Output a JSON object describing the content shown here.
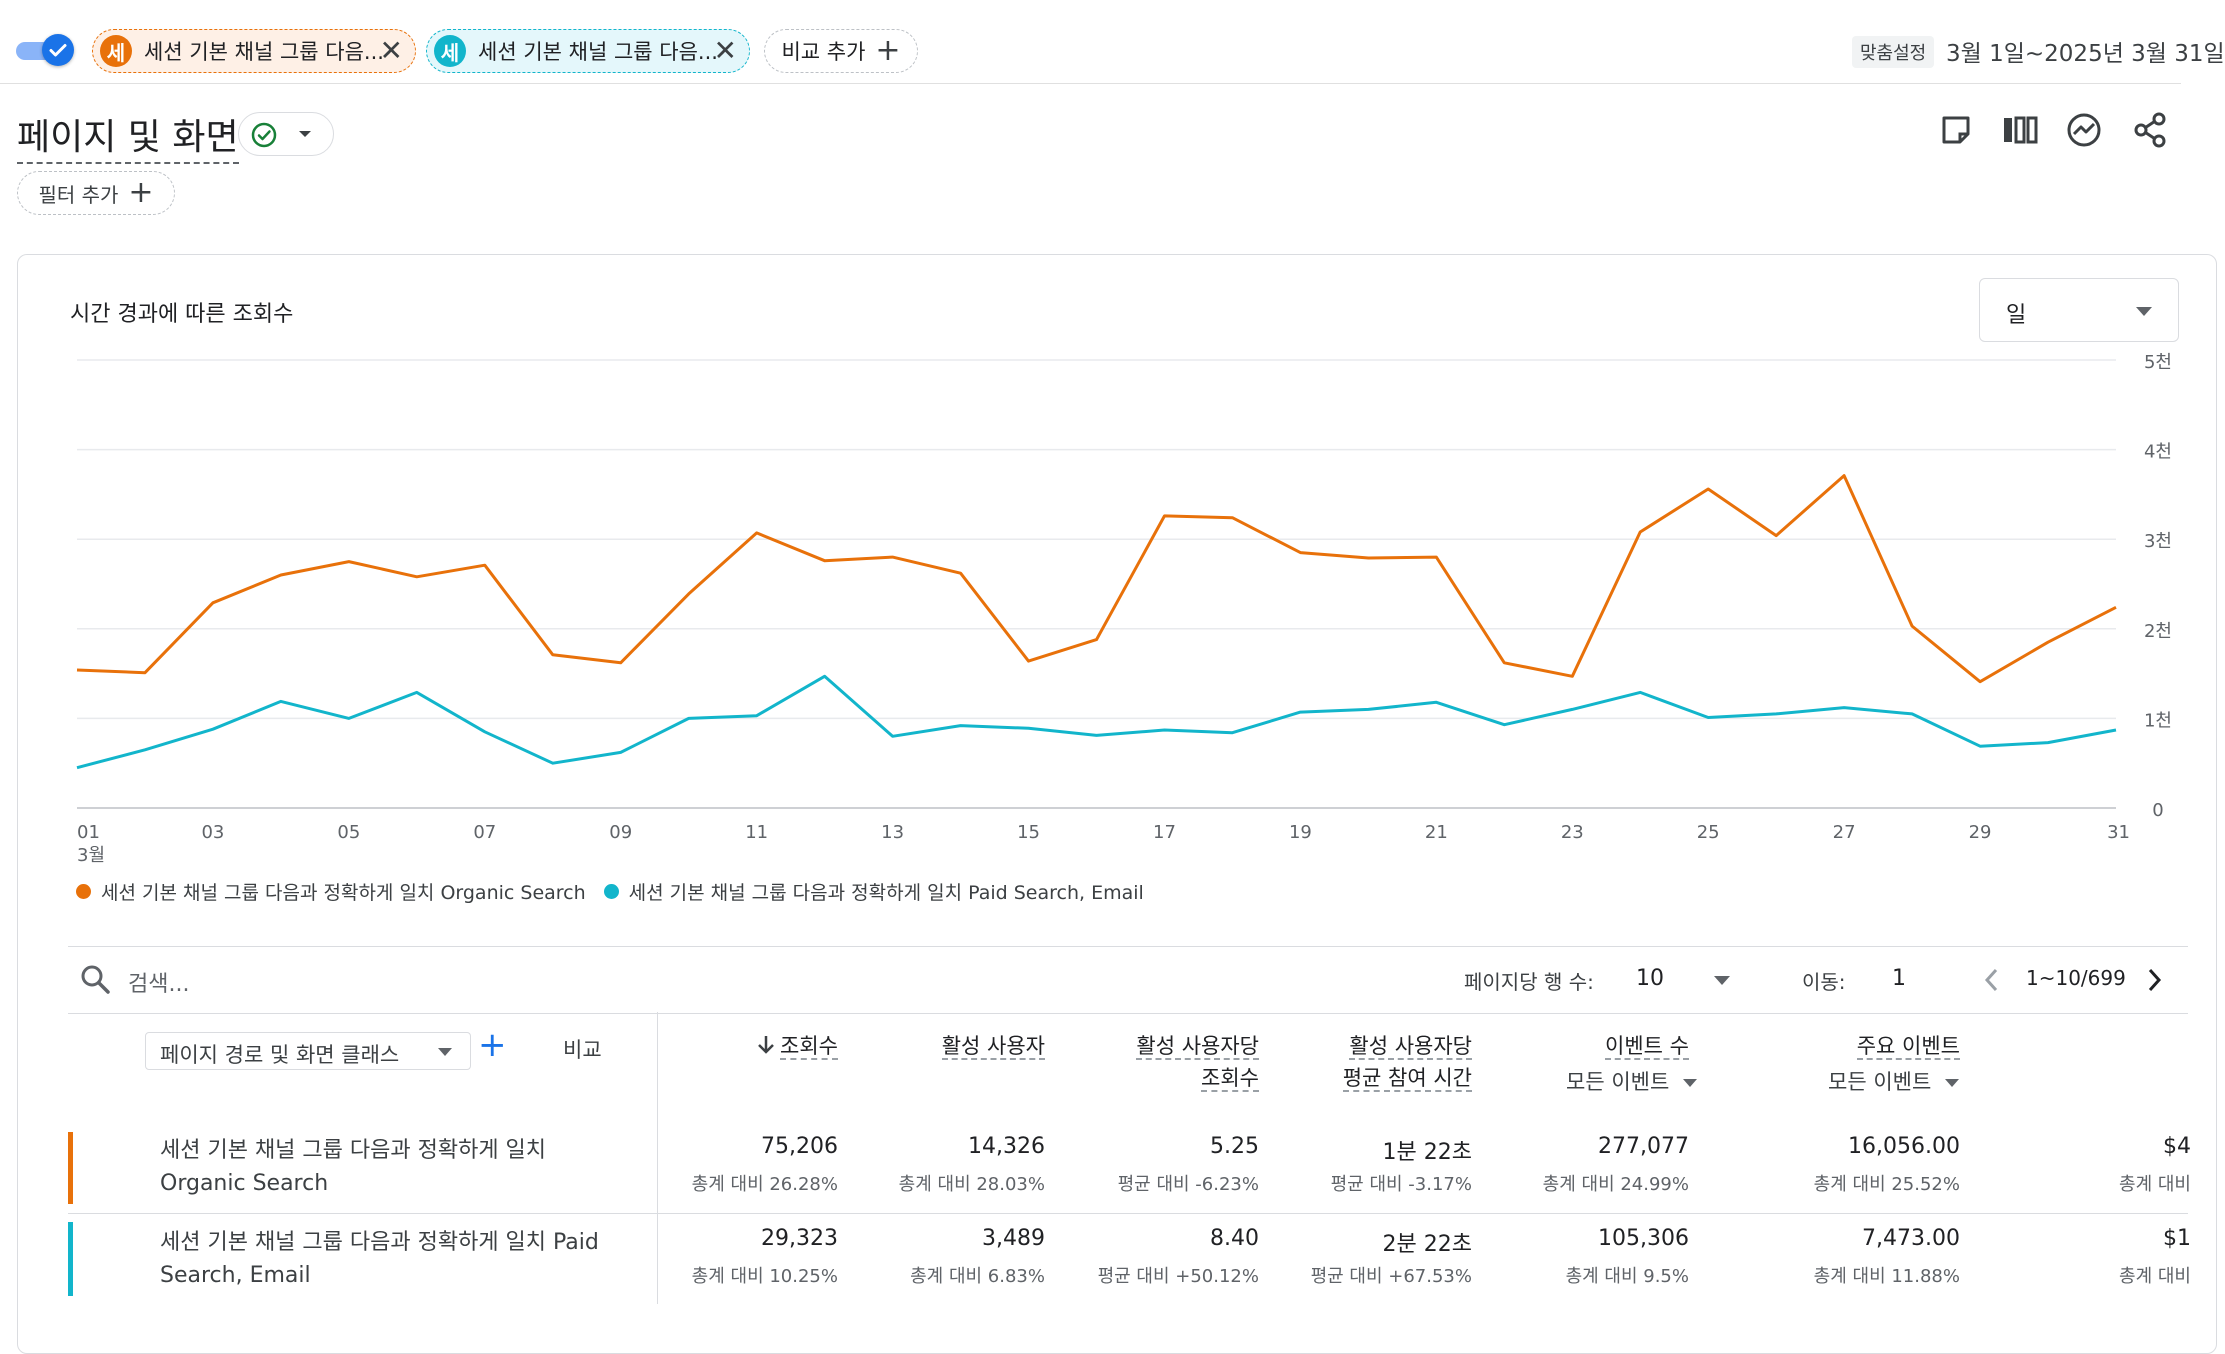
{
  "top_bar": {
    "segments": [
      {
        "badge": "세",
        "label": "세션 기본 채널 그룹 다음...",
        "color": "#e8710a"
      },
      {
        "badge": "세",
        "label": "세션 기본 채널 그룹 다음...",
        "color": "#12b5cb"
      }
    ],
    "add_compare_label": "비교 추가",
    "custom_label": "맞춤설정",
    "date_range": "3월 1일~2025년 3월 31일"
  },
  "header": {
    "title": "페이지 및 화면",
    "add_filter_label": "필터 추가"
  },
  "chart_card": {
    "title": "시간 경과에 따른 조회수",
    "period_value": "일"
  },
  "chart_data": {
    "type": "line",
    "x": [
      1,
      2,
      3,
      4,
      5,
      6,
      7,
      8,
      9,
      10,
      11,
      12,
      13,
      14,
      15,
      16,
      17,
      18,
      19,
      20,
      21,
      22,
      23,
      24,
      25,
      26,
      27,
      28,
      29,
      30,
      31
    ],
    "x_tick_labels": [
      "01",
      "03",
      "05",
      "07",
      "09",
      "11",
      "13",
      "15",
      "17",
      "19",
      "21",
      "23",
      "25",
      "27",
      "29",
      "31"
    ],
    "x_tick_values": [
      1,
      3,
      5,
      7,
      9,
      11,
      13,
      15,
      17,
      19,
      21,
      23,
      25,
      27,
      29,
      31
    ],
    "x_sublabel": "3월",
    "y_tick_labels": [
      "0",
      "1천",
      "2천",
      "3천",
      "4천",
      "5천"
    ],
    "y_tick_values": [
      0,
      1000,
      2000,
      3000,
      4000,
      5000
    ],
    "ylim": [
      0,
      5000
    ],
    "grid": true,
    "legend_position": "bottom-left",
    "series": [
      {
        "name": "세션 기본 채널 그룹 다음과 정확하게 일치 Organic Search",
        "color": "#e8710a",
        "values": [
          1540,
          1510,
          2290,
          2600,
          2750,
          2580,
          2710,
          1710,
          1620,
          2390,
          3070,
          2760,
          2800,
          2620,
          1640,
          1880,
          3260,
          3240,
          2850,
          2790,
          2800,
          1620,
          1470,
          3080,
          3560,
          3040,
          3710,
          2030,
          1410,
          1850,
          2240
        ]
      },
      {
        "name": "세션 기본 채널 그룹 다음과 정확하게 일치 Paid Search, Email",
        "color": "#12b5cb",
        "values": [
          450,
          650,
          880,
          1190,
          1000,
          1290,
          850,
          500,
          620,
          1000,
          1030,
          1470,
          800,
          920,
          890,
          810,
          870,
          840,
          1070,
          1100,
          1180,
          930,
          1100,
          1290,
          1010,
          1050,
          1120,
          1050,
          690,
          730,
          870
        ]
      }
    ]
  },
  "table_controls": {
    "search_placeholder": "검색...",
    "rows_per_page_label": "페이지당 행 수:",
    "rows_per_page_value": "10",
    "goto_label": "이동:",
    "goto_value": "1",
    "range_label": "1~10/699"
  },
  "table": {
    "dimension_label": "페이지 경로 및 화면 클래스",
    "compare_label": "비교",
    "columns": [
      {
        "line1": "조회수",
        "line2": "",
        "sorted": true
      },
      {
        "line1": "활성 사용자",
        "line2": ""
      },
      {
        "line1": "활성 사용자당",
        "line2": "조회수"
      },
      {
        "line1": "활성 사용자당",
        "line2": "평균 참여 시간"
      },
      {
        "line1": "이벤트 수",
        "sub": "모든 이벤트"
      },
      {
        "line1": "주요 이벤트",
        "sub": "모든 이벤트"
      },
      {
        "line1": "",
        "line2": ""
      }
    ],
    "rows": [
      {
        "label_line1": "세션 기본 채널 그룹 다음과 정확하게 일치",
        "label_line2": "Organic Search",
        "color": "#e8710a",
        "cells": [
          {
            "value": "75,206",
            "sub": "총계 대비 26.28%"
          },
          {
            "value": "14,326",
            "sub": "총계 대비 28.03%"
          },
          {
            "value": "5.25",
            "sub": "평균 대비 -6.23%"
          },
          {
            "value": "1분 22초",
            "sub": "평균 대비 -3.17%"
          },
          {
            "value": "277,077",
            "sub": "총계 대비 24.99%"
          },
          {
            "value": "16,056.00",
            "sub": "총계 대비 25.52%"
          },
          {
            "value": "$4",
            "sub": "총계 대비"
          }
        ]
      },
      {
        "label_line1": "세션 기본 채널 그룹 다음과 정확하게 일치 Paid",
        "label_line2": "Search, Email",
        "color": "#12b5cb",
        "cells": [
          {
            "value": "29,323",
            "sub": "총계 대비 10.25%"
          },
          {
            "value": "3,489",
            "sub": "총계 대비 6.83%"
          },
          {
            "value": "8.40",
            "sub": "평균 대비 +50.12%"
          },
          {
            "value": "2분 22초",
            "sub": "평균 대비 +67.53%"
          },
          {
            "value": "105,306",
            "sub": "총계 대비 9.5%"
          },
          {
            "value": "7,473.00",
            "sub": "총계 대비 11.88%"
          },
          {
            "value": "$1",
            "sub": "총계 대비"
          }
        ]
      }
    ]
  }
}
